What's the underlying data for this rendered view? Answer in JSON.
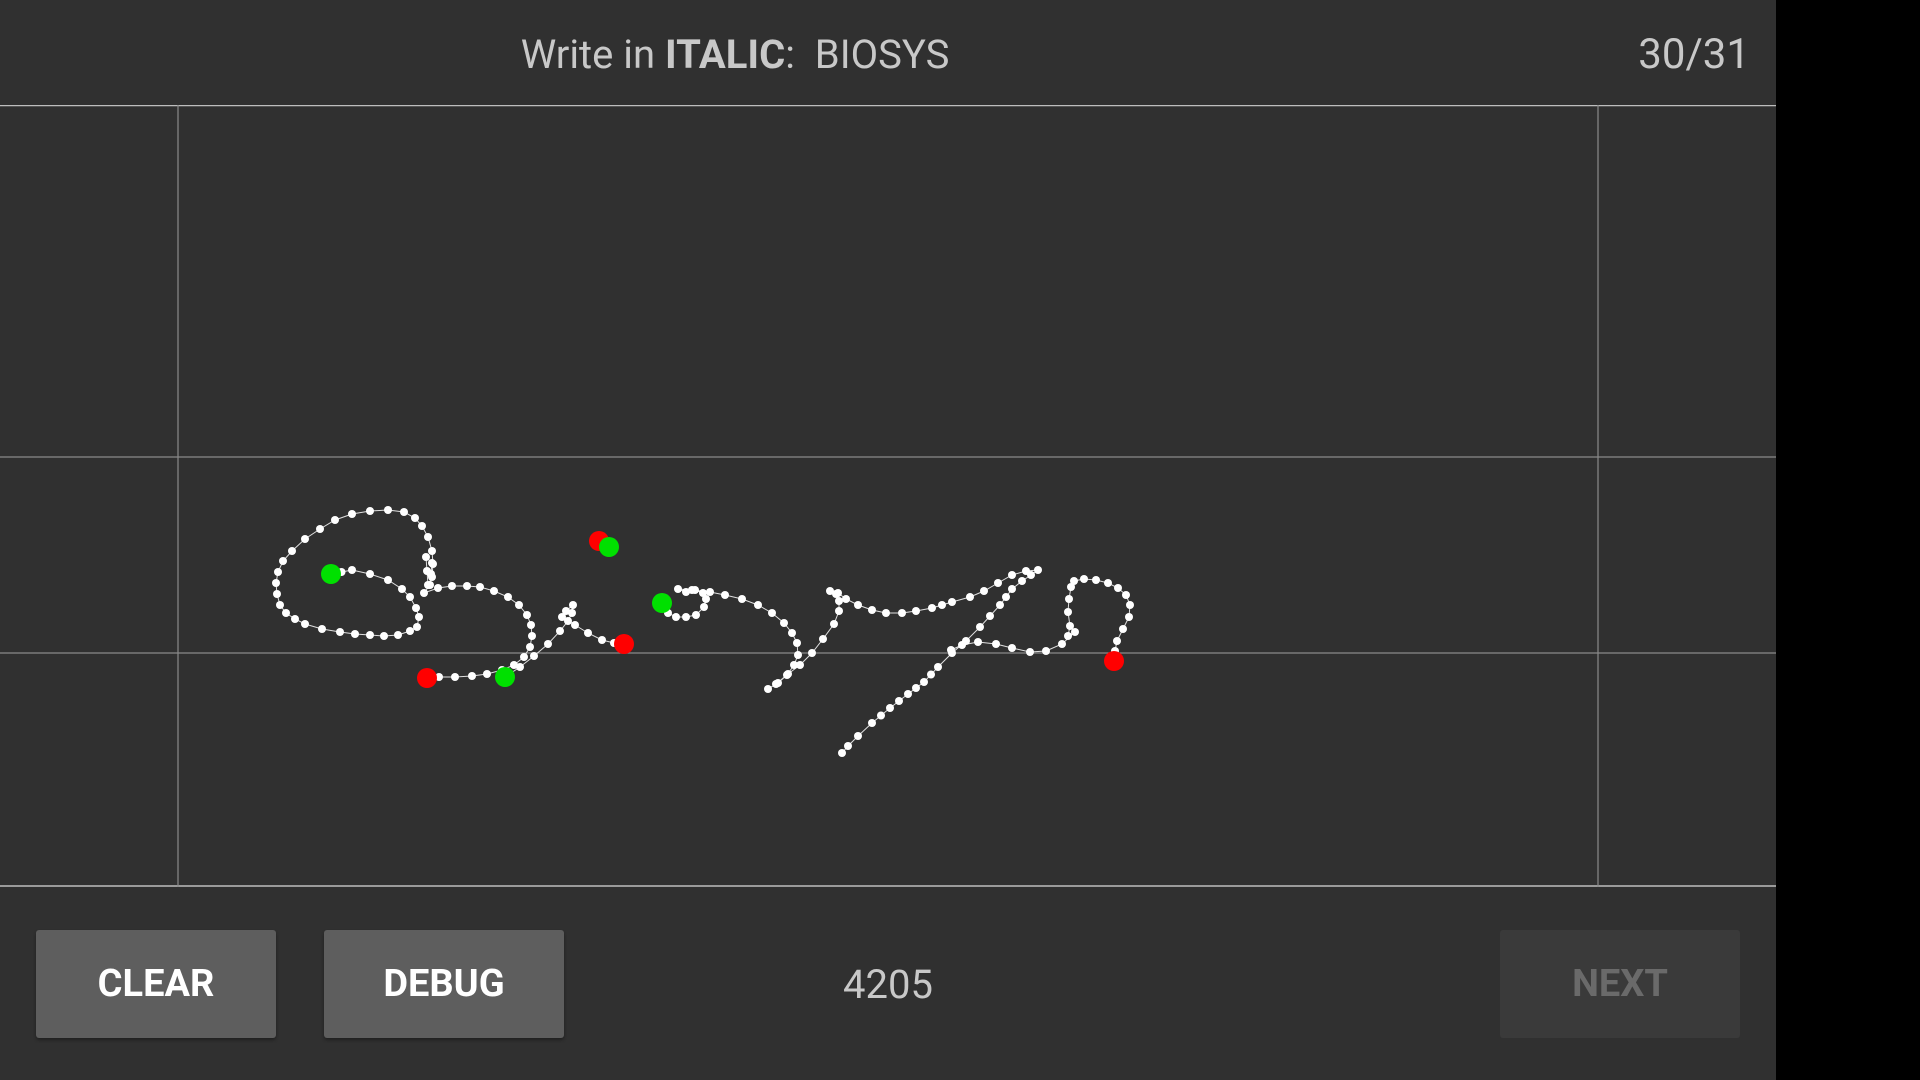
{
  "header": {
    "prompt_prefix": "Write in ",
    "prompt_style": "ITALIC",
    "prompt_colon": ":",
    "prompt_word": "BIOSYS",
    "counter": "30/31"
  },
  "footer": {
    "clear_label": "CLEAR",
    "debug_label": "DEBUG",
    "point_count": "4205",
    "next_label": "NEXT",
    "next_enabled": false
  },
  "colors": {
    "background": "#303030",
    "ink": "#ffffff",
    "stroke_start": "#00e000",
    "stroke_end": "#ff0000",
    "guide_line": "#8a8a8a"
  }
}
